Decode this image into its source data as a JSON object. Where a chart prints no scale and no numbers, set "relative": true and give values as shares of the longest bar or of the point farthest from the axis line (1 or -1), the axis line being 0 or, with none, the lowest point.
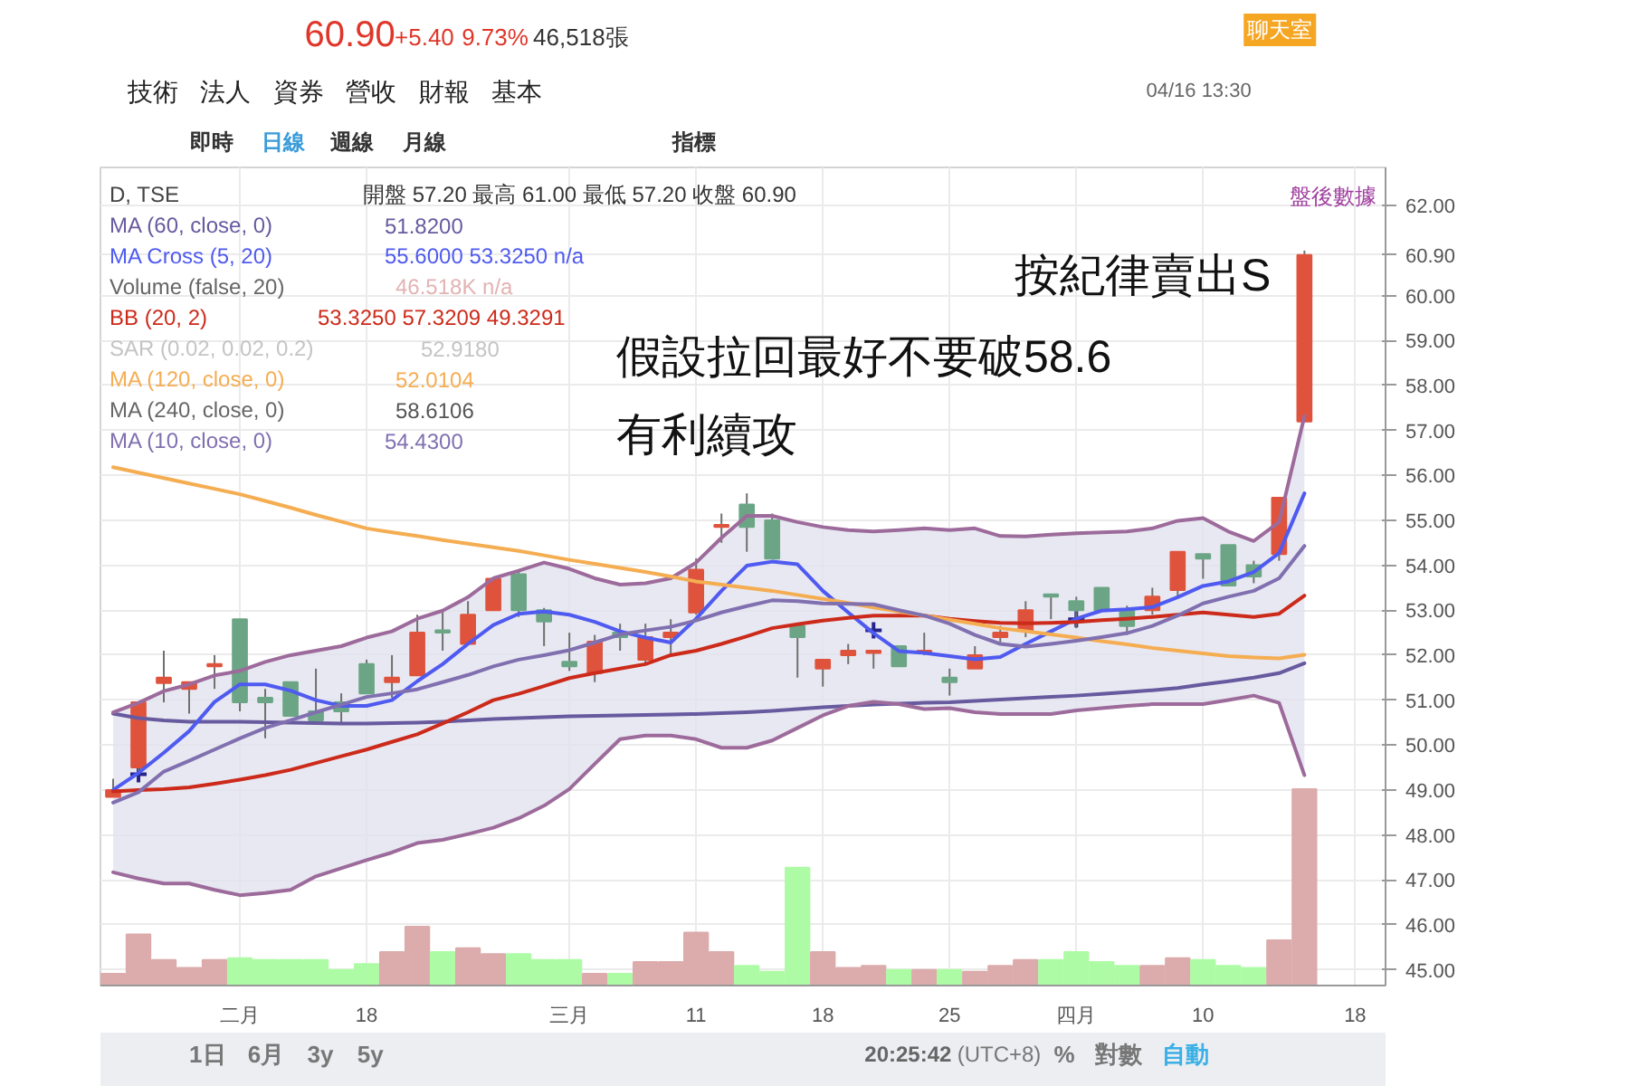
{
  "chart_data": [
    {
      "type": "candlestick",
      "categories": [
        null,
        null,
        null,
        null,
        null,
        "二月",
        null,
        null,
        null,
        null,
        "18",
        null,
        null,
        null,
        null,
        null,
        null,
        null,
        "三月",
        null,
        null,
        null,
        null,
        "11",
        null,
        null,
        null,
        null,
        "18",
        null,
        null,
        null,
        null,
        "25",
        null,
        null,
        null,
        null,
        "四月",
        null,
        null,
        null,
        null,
        "10",
        null,
        null,
        null,
        null,
        null,
        "18"
      ],
      "ohlc": [
        [
          48.85,
          49.25,
          48.85,
          49.0
        ],
        [
          49.5,
          50.95,
          49.4,
          50.95
        ],
        [
          51.38,
          52.1,
          50.95,
          51.5
        ],
        [
          51.25,
          51.4,
          50.7,
          51.4
        ],
        [
          51.75,
          52.0,
          51.25,
          51.8
        ],
        [
          52.8,
          52.8,
          50.75,
          50.95
        ],
        [
          51.05,
          51.25,
          50.15,
          50.95
        ],
        [
          51.4,
          51.4,
          50.65,
          50.65
        ],
        [
          50.75,
          51.7,
          50.55,
          50.55
        ],
        [
          50.95,
          51.15,
          50.5,
          50.75
        ],
        [
          51.8,
          51.9,
          51.15,
          51.15
        ],
        [
          51.4,
          52.0,
          51.05,
          51.5
        ],
        [
          51.55,
          52.9,
          51.55,
          52.5
        ],
        [
          52.55,
          53.0,
          52.1,
          52.5
        ],
        [
          52.25,
          53.2,
          52.25,
          52.9
        ],
        [
          53.0,
          53.7,
          53.0,
          53.7
        ],
        [
          53.8,
          53.9,
          52.85,
          53.0
        ],
        [
          53.0,
          53.05,
          52.2,
          52.75
        ],
        [
          51.85,
          52.5,
          51.65,
          51.75
        ],
        [
          51.6,
          52.45,
          51.4,
          52.3
        ],
        [
          52.5,
          52.7,
          52.1,
          52.4
        ],
        [
          51.9,
          52.7,
          51.8,
          52.4
        ],
        [
          52.4,
          52.8,
          52.0,
          52.5
        ],
        [
          52.95,
          54.15,
          52.9,
          53.9
        ],
        [
          54.85,
          55.15,
          54.5,
          54.9
        ],
        [
          55.35,
          55.6,
          54.3,
          54.85
        ],
        [
          55.0,
          55.15,
          54.15,
          54.15
        ],
        [
          52.65,
          52.65,
          51.5,
          52.4
        ],
        [
          51.7,
          51.9,
          51.3,
          51.9
        ],
        [
          52.0,
          52.25,
          51.8,
          52.1
        ],
        [
          52.05,
          52.1,
          51.7,
          52.1
        ],
        [
          52.2,
          52.2,
          51.75,
          51.75
        ],
        [
          52.05,
          52.5,
          52.0,
          52.1
        ],
        [
          51.5,
          51.7,
          51.1,
          51.4
        ],
        [
          51.7,
          52.2,
          51.7,
          52.0
        ],
        [
          52.4,
          52.65,
          52.25,
          52.5
        ],
        [
          52.55,
          53.2,
          52.4,
          53.0
        ],
        [
          53.35,
          53.35,
          52.8,
          53.3
        ],
        [
          53.2,
          53.3,
          52.6,
          53.0
        ],
        [
          53.5,
          53.5,
          53.0,
          53.0
        ],
        [
          53.0,
          53.1,
          52.45,
          52.65
        ],
        [
          53.0,
          53.5,
          52.9,
          53.3
        ],
        [
          53.45,
          54.3,
          53.3,
          54.3
        ],
        [
          54.25,
          54.25,
          53.7,
          54.15
        ],
        [
          54.45,
          54.45,
          53.55,
          53.55
        ],
        [
          54.0,
          54.1,
          53.6,
          53.75
        ],
        [
          54.25,
          55.5,
          54.1,
          55.5
        ],
        [
          57.2,
          61.0,
          57.2,
          60.9
        ],
        null,
        null
      ],
      "colors": [
        "#df533d",
        "#df533d",
        "#df533d",
        "#df533d",
        "#df533d",
        "#6ba585",
        "#6ba585",
        "#6ba585",
        "#6ba585",
        "#6ba585",
        "#6ba585",
        "#df533d",
        "#df533d",
        "#6ba585",
        "#df533d",
        "#df533d",
        "#6ba585",
        "#6ba585",
        "#6ba585",
        "#df533d",
        "#6ba585",
        "#df533d",
        "#df533d",
        "#df533d",
        "#df533d",
        "#6ba585",
        "#6ba585",
        "#6ba585",
        "#df533d",
        "#df533d",
        "#df533d",
        "#6ba585",
        "#df533d",
        "#6ba585",
        "#df533d",
        "#df533d",
        "#df533d",
        "#6ba585",
        "#6ba585",
        "#6ba585",
        "#6ba585",
        "#df533d",
        "#df533d",
        "#6ba585",
        "#6ba585",
        "#6ba585",
        "#df533d",
        "#df533d",
        null,
        null
      ],
      "series": [
        {
          "type": "line",
          "name": "MA (60, close, 0)",
          "color": "#675a9f",
          "values": [
            50.7,
            50.6,
            50.55,
            50.52,
            50.52,
            50.52,
            50.51,
            50.5,
            50.49,
            50.48,
            50.48,
            50.49,
            50.5,
            50.52,
            50.55,
            50.58,
            50.6,
            50.62,
            50.64,
            50.65,
            50.66,
            50.67,
            50.68,
            50.69,
            50.71,
            50.73,
            50.76,
            50.8,
            50.84,
            50.87,
            50.9,
            50.92,
            50.94,
            50.95,
            50.98,
            51.01,
            51.04,
            51.07,
            51.1,
            51.14,
            51.18,
            51.22,
            51.27,
            51.35,
            51.42,
            51.5,
            51.6,
            51.82,
            null,
            null
          ]
        },
        {
          "type": "line",
          "name": "MA Cross (5, 20)",
          "color": "#4f5af0",
          "values": [
            49.0,
            49.38,
            49.83,
            50.31,
            50.96,
            51.35,
            51.35,
            51.21,
            51.0,
            50.87,
            50.87,
            51.0,
            51.42,
            51.8,
            52.25,
            52.67,
            52.92,
            52.97,
            52.9,
            52.74,
            52.53,
            52.39,
            52.28,
            52.81,
            53.43,
            53.99,
            54.08,
            54.02,
            53.43,
            52.95,
            52.49,
            52.09,
            52.05,
            51.98,
            51.91,
            51.96,
            52.25,
            52.53,
            52.81,
            52.99,
            53.02,
            53.07,
            53.29,
            53.54,
            53.64,
            53.85,
            54.27,
            55.6,
            null,
            null
          ]
        },
        {
          "type": "scatter",
          "marker": "cross",
          "color": "#24248a",
          "values": [
            null,
            49.35,
            null,
            null,
            null,
            null,
            null,
            null,
            null,
            null,
            null,
            null,
            null,
            null,
            null,
            null,
            null,
            null,
            null,
            null,
            null,
            null,
            null,
            null,
            null,
            null,
            null,
            null,
            null,
            null,
            52.55,
            null,
            null,
            null,
            null,
            null,
            null,
            null,
            52.8,
            null,
            null,
            null,
            null,
            null,
            null,
            null,
            null,
            null,
            null,
            null
          ]
        },
        {
          "type": "line",
          "name": "BB (20, 2)",
          "color": "#cc2a1a",
          "values": [
            48.97,
            49.0,
            49.02,
            49.06,
            49.14,
            49.23,
            49.33,
            49.45,
            49.6,
            49.75,
            49.9,
            50.07,
            50.24,
            50.48,
            50.73,
            51.0,
            51.14,
            51.31,
            51.49,
            51.6,
            51.7,
            51.8,
            52.0,
            52.1,
            52.25,
            52.42,
            52.6,
            52.69,
            52.77,
            52.83,
            52.88,
            52.88,
            52.88,
            52.81,
            52.76,
            52.72,
            52.71,
            52.72,
            52.74,
            52.78,
            52.81,
            52.85,
            52.9,
            52.95,
            52.9,
            52.85,
            52.92,
            53.325,
            null,
            null
          ],
          "upper": [
            50.73,
            50.94,
            51.2,
            51.35,
            51.55,
            51.65,
            51.85,
            52.0,
            52.1,
            52.2,
            52.39,
            52.53,
            52.81,
            52.99,
            53.29,
            53.71,
            53.88,
            54.06,
            53.92,
            53.71,
            53.57,
            53.6,
            53.71,
            54.06,
            54.61,
            55.1,
            55.1,
            54.96,
            54.85,
            54.78,
            54.75,
            54.78,
            54.82,
            54.78,
            54.82,
            54.65,
            54.64,
            54.68,
            54.71,
            54.73,
            54.75,
            54.82,
            54.99,
            55.05,
            54.75,
            54.54,
            54.96,
            57.32,
            null,
            null
          ],
          "lower": [
            47.17,
            47.03,
            46.92,
            46.92,
            46.78,
            46.66,
            46.71,
            46.78,
            47.08,
            47.26,
            47.44,
            47.61,
            47.82,
            47.89,
            48.02,
            48.16,
            48.37,
            48.65,
            49.02,
            49.58,
            50.13,
            50.21,
            50.21,
            50.13,
            49.94,
            49.94,
            50.1,
            50.38,
            50.66,
            50.87,
            50.96,
            50.91,
            50.8,
            50.82,
            50.73,
            50.69,
            50.69,
            50.69,
            50.77,
            50.82,
            50.87,
            50.91,
            50.91,
            50.91,
            51.0,
            51.1,
            50.94,
            49.33,
            null,
            null
          ]
        },
        {
          "type": "line",
          "color": "#9d6b9b",
          "values": [
            50.73,
            50.94,
            51.2,
            51.35,
            51.55,
            51.65,
            51.85,
            52.0,
            52.1,
            52.2,
            52.39,
            52.53,
            52.81,
            52.99,
            53.29,
            53.71,
            53.88,
            54.06,
            53.92,
            53.71,
            53.57,
            53.6,
            53.71,
            54.06,
            54.61,
            55.1,
            55.1,
            54.96,
            54.85,
            54.78,
            54.75,
            54.78,
            54.82,
            54.78,
            54.82,
            54.65,
            54.64,
            54.68,
            54.71,
            54.73,
            54.75,
            54.82,
            54.99,
            55.05,
            54.75,
            54.54,
            54.96,
            57.32,
            null,
            null
          ]
        },
        {
          "type": "line",
          "color": "#9d6b9b",
          "values": [
            47.17,
            47.03,
            46.92,
            46.92,
            46.78,
            46.66,
            46.71,
            46.78,
            47.08,
            47.26,
            47.44,
            47.61,
            47.82,
            47.89,
            48.02,
            48.16,
            48.37,
            48.65,
            49.02,
            49.58,
            50.13,
            50.21,
            50.21,
            50.13,
            49.94,
            49.94,
            50.1,
            50.38,
            50.66,
            50.87,
            50.96,
            50.91,
            50.8,
            50.82,
            50.73,
            50.69,
            50.69,
            50.69,
            50.77,
            50.82,
            50.87,
            50.91,
            50.91,
            50.91,
            51.0,
            51.1,
            50.94,
            49.33,
            null,
            null
          ]
        },
        {
          "type": "line",
          "name": "MA (120, close, 0)",
          "color": "#f5ad52",
          "values": [
            56.18,
            56.06,
            55.94,
            55.82,
            55.7,
            55.58,
            55.43,
            55.28,
            55.12,
            54.97,
            54.82,
            54.73,
            54.65,
            54.56,
            54.48,
            54.4,
            54.32,
            54.22,
            54.12,
            54.03,
            53.94,
            53.85,
            53.75,
            53.64,
            53.57,
            53.5,
            53.43,
            53.34,
            53.25,
            53.16,
            53.06,
            52.97,
            52.88,
            52.79,
            52.7,
            52.6,
            52.53,
            52.46,
            52.39,
            52.31,
            52.24,
            52.16,
            52.1,
            52.04,
            51.98,
            51.95,
            51.93,
            52.01,
            null,
            null
          ]
        },
        {
          "type": "line",
          "name": "MA (10, close, 0)",
          "color": "#8070b0",
          "values": [
            48.72,
            48.95,
            49.41,
            49.65,
            49.9,
            50.15,
            50.38,
            50.55,
            50.73,
            50.9,
            51.07,
            51.15,
            51.24,
            51.4,
            51.56,
            51.75,
            51.9,
            52.0,
            52.11,
            52.28,
            52.46,
            52.55,
            52.63,
            52.77,
            52.95,
            53.09,
            53.22,
            53.2,
            53.15,
            53.14,
            53.13,
            53.0,
            52.88,
            52.7,
            52.45,
            52.25,
            52.19,
            52.25,
            52.32,
            52.4,
            52.49,
            52.65,
            52.88,
            53.15,
            53.3,
            53.43,
            53.71,
            54.43,
            null,
            null
          ]
        }
      ],
      "ylim": [
        44.65,
        62.85
      ],
      "yticks": [
        {
          "value": 45,
          "label": "45.00"
        },
        {
          "value": 46,
          "label": "46.00"
        },
        {
          "value": 47,
          "label": "47.00"
        },
        {
          "value": 48,
          "label": "48.00"
        },
        {
          "value": 49,
          "label": "49.00"
        },
        {
          "value": 50,
          "label": "50.00"
        },
        {
          "value": 51,
          "label": "51.00"
        },
        {
          "value": 52,
          "label": "52.00"
        },
        {
          "value": 53,
          "label": "53.00"
        },
        {
          "value": 54,
          "label": "54.00"
        },
        {
          "value": 55,
          "label": "55.00"
        },
        {
          "value": 56,
          "label": "56.00"
        },
        {
          "value": 57,
          "label": "57.00"
        },
        {
          "value": 58,
          "label": "58.00"
        },
        {
          "value": 59,
          "label": "59.00"
        },
        {
          "value": 60,
          "label": "60.00"
        },
        {
          "value": 60.9,
          "label": "60.90"
        },
        {
          "value": 62,
          "label": "62.00"
        }
      ],
      "grid": true,
      "legend": "top left",
      "annotations": [
        "60.90",
        "+5.40",
        "9.73%",
        "46,518張",
        "技術",
        "法人",
        "資券",
        "營收",
        "財報",
        "基本",
        "04/16 13:30",
        "聊天室",
        "即時",
        "日線",
        "週線",
        "月線",
        "指標",
        "D, TSE",
        "開盤 57.20 最高 61.00 最低 57.20 收盤 60.90",
        "51.8200",
        "55.6000 53.3250 n/a",
        "Volume (false, 20)",
        "46.518K n/a",
        "53.3250 57.3209 49.3291",
        "SAR (0.02, 0.02, 0.2)",
        "52.9180",
        "52.0104",
        "MA (240, close, 0)",
        "58.6106",
        "54.4300",
        "按紀律賣出S",
        "假設拉回最好不要破58.6",
        "有利續攻",
        "盤後數據"
      ]
    },
    {
      "type": "bar",
      "relative": true,
      "categories": [
        null,
        null,
        null,
        null,
        null,
        null,
        null,
        null,
        null,
        null,
        null,
        null,
        null,
        null,
        null,
        null,
        null,
        null,
        null,
        null,
        null,
        null,
        null,
        null,
        null,
        null,
        null,
        null,
        null,
        null,
        null,
        null,
        null,
        null,
        null,
        null,
        null,
        null,
        null,
        null,
        null,
        null,
        null,
        null,
        null,
        null,
        null,
        null,
        null,
        null
      ],
      "values": [
        0.06,
        0.26,
        0.13,
        0.09,
        0.13,
        0.14,
        0.13,
        0.13,
        0.13,
        0.08,
        0.11,
        0.17,
        0.3,
        0.17,
        0.19,
        0.16,
        0.16,
        0.13,
        0.13,
        0.06,
        0.06,
        0.12,
        0.12,
        0.27,
        0.17,
        0.1,
        0.07,
        0.6,
        0.17,
        0.09,
        0.1,
        0.08,
        0.08,
        0.08,
        0.07,
        0.1,
        0.13,
        0.13,
        0.17,
        0.12,
        0.1,
        0.1,
        0.14,
        0.13,
        0.1,
        0.09,
        0.23,
        1,
        null,
        null
      ],
      "colors": [
        "#dcabab",
        "#dcabab",
        "#dcabab",
        "#dcabab",
        "#dcabab",
        "#aefba6",
        "#aefba6",
        "#aefba6",
        "#aefba6",
        "#aefba6",
        "#aefba6",
        "#dcabab",
        "#dcabab",
        "#aefba6",
        "#dcabab",
        "#dcabab",
        "#aefba6",
        "#aefba6",
        "#aefba6",
        "#dcabab",
        "#aefba6",
        "#dcabab",
        "#dcabab",
        "#dcabab",
        "#dcabab",
        "#aefba6",
        "#aefba6",
        "#aefba6",
        "#dcabab",
        "#dcabab",
        "#dcabab",
        "#aefba6",
        "#dcabab",
        "#aefba6",
        "#dcabab",
        "#dcabab",
        "#dcabab",
        "#aefba6",
        "#aefba6",
        "#aefba6",
        "#aefba6",
        "#dcabab",
        "#dcabab",
        "#aefba6",
        "#aefba6",
        "#aefba6",
        "#dcabab",
        "#dcabab",
        null,
        null
      ],
      "annotations": [
        "1日",
        "6月",
        "3y",
        "5y",
        "20:25:42",
        "(UTC+8)",
        "%",
        "對數",
        "自動"
      ]
    }
  ]
}
